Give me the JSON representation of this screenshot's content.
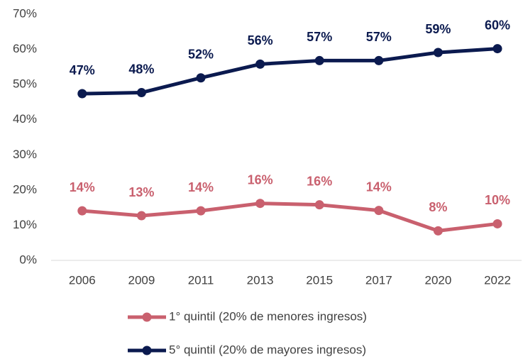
{
  "chart_data": {
    "type": "line",
    "categories": [
      "2006",
      "2009",
      "2011",
      "2013",
      "2015",
      "2017",
      "2020",
      "2022"
    ],
    "series": [
      {
        "name": "1° quintil (20% de menores ingresos)",
        "color": "#c9606e",
        "values": [
          14.1,
          12.7,
          14.1,
          16.2,
          15.8,
          14.2,
          8.4,
          10.4
        ],
        "value_labels": [
          "14%",
          "13%",
          "14%",
          "16%",
          "16%",
          "14%",
          "8%",
          "10%"
        ]
      },
      {
        "name": "5° quintil (20% de mayores ingresos)",
        "color": "#0b1a4f",
        "values": [
          47.4,
          47.7,
          51.9,
          55.8,
          56.8,
          56.8,
          59.1,
          60.2
        ],
        "value_labels": [
          "47%",
          "48%",
          "52%",
          "56%",
          "57%",
          "57%",
          "59%",
          "60%"
        ]
      }
    ],
    "ylim": [
      0,
      70
    ],
    "yticks": [
      {
        "value": 0,
        "label": "0%"
      },
      {
        "value": 10,
        "label": "10%"
      },
      {
        "value": 20,
        "label": "20%"
      },
      {
        "value": 30,
        "label": "30%"
      },
      {
        "value": 40,
        "label": "40%"
      },
      {
        "value": 50,
        "label": "50%"
      },
      {
        "value": 60,
        "label": "60%"
      },
      {
        "value": 70,
        "label": "70%"
      }
    ],
    "grid": false,
    "legend": "bottom"
  }
}
